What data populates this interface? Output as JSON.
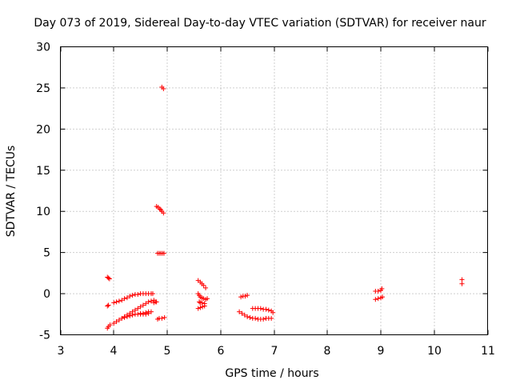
{
  "chart_data": {
    "type": "scatter",
    "title": "Day 073 of 2019, Sidereal Day-to-day VTEC variation (SDTVAR) for receiver naur",
    "xlabel": "GPS time / hours",
    "ylabel": "SDTVAR / TECUs",
    "xlim": [
      3,
      11
    ],
    "ylim": [
      -5,
      30
    ],
    "xticks": [
      3,
      4,
      5,
      6,
      7,
      8,
      9,
      10,
      11
    ],
    "yticks": [
      -5,
      0,
      5,
      10,
      15,
      20,
      25,
      30
    ],
    "grid": true,
    "marker": "plus",
    "color": "#ff0000",
    "series": [
      {
        "points": [
          [
            3.88,
            2.0
          ],
          [
            3.9,
            1.9
          ],
          [
            3.92,
            1.8
          ],
          [
            3.88,
            -1.5
          ],
          [
            3.9,
            -1.4
          ],
          [
            3.88,
            -4.2
          ],
          [
            3.9,
            -4.0
          ],
          [
            3.93,
            -3.8
          ],
          [
            4.0,
            -3.6
          ],
          [
            4.05,
            -3.4
          ],
          [
            4.1,
            -3.2
          ],
          [
            4.15,
            -3.0
          ],
          [
            4.2,
            -2.9
          ],
          [
            4.25,
            -2.8
          ],
          [
            4.3,
            -2.7
          ],
          [
            4.35,
            -2.6
          ],
          [
            4.4,
            -2.5
          ],
          [
            4.45,
            -2.5
          ],
          [
            4.5,
            -2.4
          ],
          [
            4.55,
            -2.4
          ],
          [
            4.6,
            -2.3
          ],
          [
            4.65,
            -2.2
          ],
          [
            4.7,
            -2.2
          ],
          [
            4.0,
            -1.1
          ],
          [
            4.05,
            -1.0
          ],
          [
            4.1,
            -0.9
          ],
          [
            4.15,
            -0.8
          ],
          [
            4.2,
            -0.6
          ],
          [
            4.25,
            -0.5
          ],
          [
            4.3,
            -0.3
          ],
          [
            4.35,
            -0.2
          ],
          [
            4.4,
            -0.1
          ],
          [
            4.45,
            -0.1
          ],
          [
            4.5,
            0.0
          ],
          [
            4.55,
            0.0
          ],
          [
            4.6,
            0.0
          ],
          [
            4.65,
            0.0
          ],
          [
            4.7,
            0.0
          ],
          [
            4.73,
            0.0
          ],
          [
            4.2,
            -2.8
          ],
          [
            4.25,
            -2.6
          ],
          [
            4.3,
            -2.4
          ],
          [
            4.35,
            -2.2
          ],
          [
            4.4,
            -2.0
          ],
          [
            4.45,
            -1.8
          ],
          [
            4.5,
            -1.6
          ],
          [
            4.55,
            -1.4
          ],
          [
            4.6,
            -1.2
          ],
          [
            4.65,
            -1.0
          ],
          [
            4.7,
            -0.9
          ],
          [
            4.75,
            -0.8
          ],
          [
            4.5,
            -2.5
          ],
          [
            4.55,
            -2.5
          ],
          [
            4.6,
            -2.5
          ],
          [
            4.65,
            -2.4
          ],
          [
            4.75,
            -1.1
          ],
          [
            4.78,
            -1.0
          ],
          [
            4.8,
            -1.0
          ],
          [
            4.82,
            -3.1
          ],
          [
            4.85,
            -3.0
          ],
          [
            4.9,
            -3.0
          ],
          [
            4.95,
            -2.9
          ],
          [
            4.8,
            10.6
          ],
          [
            4.83,
            10.5
          ],
          [
            4.86,
            10.3
          ],
          [
            4.88,
            10.2
          ],
          [
            4.9,
            10.0
          ],
          [
            4.93,
            9.8
          ],
          [
            4.82,
            4.9
          ],
          [
            4.85,
            4.9
          ],
          [
            4.88,
            4.9
          ],
          [
            4.91,
            4.9
          ],
          [
            4.94,
            4.9
          ],
          [
            4.9,
            25.1
          ],
          [
            4.93,
            24.9
          ],
          [
            5.58,
            1.6
          ],
          [
            5.62,
            1.4
          ],
          [
            5.65,
            1.2
          ],
          [
            5.68,
            1.0
          ],
          [
            5.72,
            0.7
          ],
          [
            5.58,
            0.0
          ],
          [
            5.6,
            -0.2
          ],
          [
            5.62,
            -0.4
          ],
          [
            5.65,
            -0.5
          ],
          [
            5.68,
            -0.6
          ],
          [
            5.72,
            -0.7
          ],
          [
            5.75,
            -0.6
          ],
          [
            5.6,
            -1.0
          ],
          [
            5.62,
            -1.1
          ],
          [
            5.65,
            -1.1
          ],
          [
            5.7,
            -1.2
          ],
          [
            5.58,
            -1.8
          ],
          [
            5.62,
            -1.7
          ],
          [
            5.66,
            -1.6
          ],
          [
            5.7,
            -1.5
          ],
          [
            6.38,
            -0.4
          ],
          [
            6.42,
            -0.3
          ],
          [
            6.46,
            -0.3
          ],
          [
            6.5,
            -0.2
          ],
          [
            6.35,
            -2.2
          ],
          [
            6.4,
            -2.4
          ],
          [
            6.45,
            -2.6
          ],
          [
            6.5,
            -2.8
          ],
          [
            6.55,
            -2.9
          ],
          [
            6.6,
            -3.0
          ],
          [
            6.65,
            -3.0
          ],
          [
            6.7,
            -3.1
          ],
          [
            6.75,
            -3.1
          ],
          [
            6.8,
            -3.1
          ],
          [
            6.85,
            -3.0
          ],
          [
            6.9,
            -3.0
          ],
          [
            6.95,
            -3.0
          ],
          [
            6.6,
            -1.8
          ],
          [
            6.65,
            -1.8
          ],
          [
            6.7,
            -1.8
          ],
          [
            6.75,
            -1.8
          ],
          [
            6.8,
            -1.9
          ],
          [
            6.85,
            -1.9
          ],
          [
            6.9,
            -2.0
          ],
          [
            6.95,
            -2.1
          ],
          [
            6.98,
            -2.3
          ],
          [
            8.9,
            0.3
          ],
          [
            8.95,
            0.3
          ],
          [
            9.0,
            0.4
          ],
          [
            9.02,
            0.6
          ],
          [
            8.9,
            -0.7
          ],
          [
            8.95,
            -0.6
          ],
          [
            9.0,
            -0.5
          ],
          [
            9.03,
            -0.4
          ],
          [
            10.52,
            1.7
          ],
          [
            10.52,
            1.2
          ]
        ]
      }
    ]
  }
}
